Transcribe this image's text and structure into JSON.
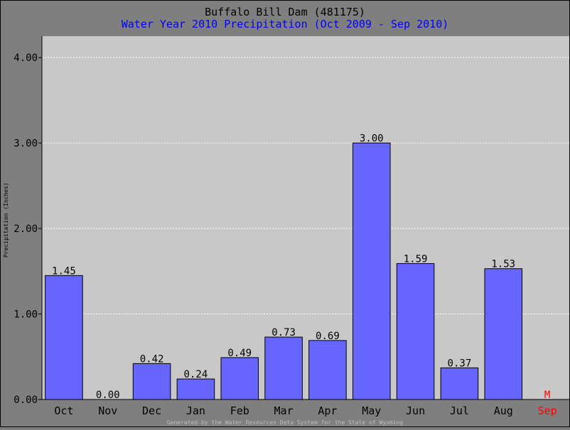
{
  "chart_data": {
    "type": "bar",
    "title": "Buffalo Bill Dam (481175)",
    "subtitle": "Water Year 2010 Precipitation (Oct 2009 - Sep 2010)",
    "ylabel": "Precipitation (Inches)",
    "footer": "Generated by the Water Resources Data System for the State of Wyoming",
    "ylim": [
      0,
      4.25
    ],
    "yticks": [
      0,
      1,
      2,
      3,
      4
    ],
    "ytick_labels": [
      "0.00",
      "1.00",
      "2.00",
      "3.00",
      "4.00"
    ],
    "grid": true,
    "categories": [
      "Oct",
      "Nov",
      "Dec",
      "Jan",
      "Feb",
      "Mar",
      "Apr",
      "May",
      "Jun",
      "Jul",
      "Aug",
      "Sep"
    ],
    "values": [
      1.45,
      0.0,
      0.42,
      0.24,
      0.49,
      0.73,
      0.69,
      3.0,
      1.59,
      0.37,
      1.53,
      null
    ],
    "value_labels": [
      "1.45",
      "0.00",
      "0.42",
      "0.24",
      "0.49",
      "0.73",
      "0.69",
      "3.00",
      "1.59",
      "0.37",
      "1.53",
      "M"
    ],
    "missing_categories": [
      "Sep"
    ],
    "colors": {
      "bar": "#6666ff",
      "plot_background": "#c8c8c8",
      "page_background": "#7f7f7f",
      "subtitle": "#0000ff",
      "missing": "#ff0000",
      "gridline": "#ffffff"
    }
  }
}
